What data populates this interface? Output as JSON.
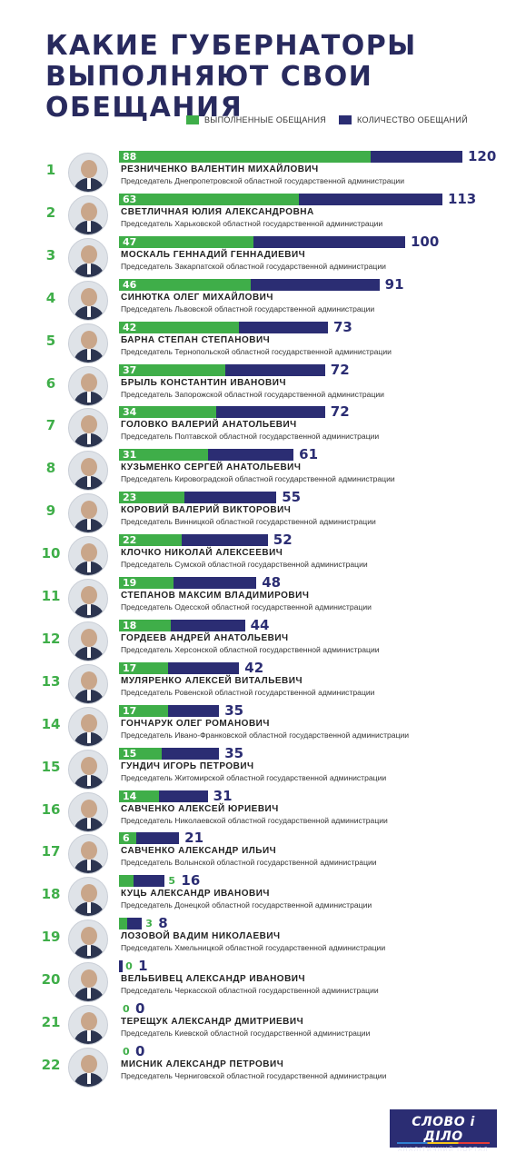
{
  "title": {
    "line1": "КАКИЕ ГУБЕРНАТОРЫ",
    "line2": "ВЫПОЛНЯЮТ СВОИ ОБЕЩАНИЯ"
  },
  "legend": {
    "done": "ВЫПОЛНЕННЫЕ ОБЕЩАНИЯ",
    "total": "КОЛИЧЕСТВО ОБЕЩАНИЙ"
  },
  "colors": {
    "done": "#3fae49",
    "total": "#2b2d73",
    "title": "#282a5e"
  },
  "logo": {
    "name": "СЛОВО і ДІЛО",
    "tagline": "АНАЛІТИЧНИЙ ПОРТАЛ"
  },
  "chart_data": {
    "type": "bar",
    "title": "КАКИЕ ГУБЕРНАТОРЫ ВЫПОЛНЯЮТ СВОИ ОБЕЩАНИЯ",
    "series": [
      {
        "name": "ВЫПОЛНЕННЫЕ ОБЕЩАНИЯ",
        "values": [
          88,
          63,
          47,
          46,
          42,
          37,
          34,
          31,
          23,
          22,
          19,
          18,
          17,
          17,
          15,
          14,
          6,
          5,
          3,
          0,
          0,
          0
        ]
      },
      {
        "name": "КОЛИЧЕСТВО ОБЕЩАНИЙ",
        "values": [
          120,
          113,
          100,
          91,
          73,
          72,
          72,
          61,
          55,
          52,
          48,
          44,
          42,
          35,
          35,
          31,
          21,
          16,
          8,
          1,
          0,
          0
        ]
      }
    ],
    "xlim": [
      0,
      120
    ],
    "rows": [
      {
        "rank": "1",
        "name": "РЕЗНИЧЕНКО ВАЛЕНТИН МИХАЙЛОВИЧ",
        "post": "Председатель Днепропетровской областной государственной администрации",
        "done": 88,
        "total": 120
      },
      {
        "rank": "2",
        "name": "СВЕТЛИЧНАЯ ЮЛИЯ АЛЕКСАНДРОВНА",
        "post": "Председатель Харьковской областной государственной администрации",
        "done": 63,
        "total": 113
      },
      {
        "rank": "3",
        "name": "МОСКАЛЬ ГЕННАДИЙ ГЕННАДИЕВИЧ",
        "post": "Председатель Закарпатской областной государственной администрации",
        "done": 47,
        "total": 100
      },
      {
        "rank": "4",
        "name": "СИНЮТКА ОЛЕГ МИХАЙЛОВИЧ",
        "post": "Председатель Львовской областной государственной администрации",
        "done": 46,
        "total": 91
      },
      {
        "rank": "5",
        "name": "БАРНА СТЕПАН СТЕПАНОВИЧ",
        "post": "Председатель Тернопольской областной государственной администрации",
        "done": 42,
        "total": 73
      },
      {
        "rank": "6",
        "name": "БРЫЛЬ КОНСТАНТИН ИВАНОВИЧ",
        "post": "Председатель Запорожской областной государственной администрации",
        "done": 37,
        "total": 72
      },
      {
        "rank": "7",
        "name": "ГОЛОВКО ВАЛЕРИЙ АНАТОЛЬЕВИЧ",
        "post": "Председатель Полтавской областной государственной администрации",
        "done": 34,
        "total": 72
      },
      {
        "rank": "8",
        "name": "КУЗЬМЕНКО СЕРГЕЙ АНАТОЛЬЕВИЧ",
        "post": "Председатель Кировоградской областной государственной администрации",
        "done": 31,
        "total": 61
      },
      {
        "rank": "9",
        "name": "КОРОВИЙ ВАЛЕРИЙ ВИКТОРОВИЧ",
        "post": "Председатель Винницкой областной государственной администрации",
        "done": 23,
        "total": 55
      },
      {
        "rank": "10",
        "name": "КЛОЧКО НИКОЛАЙ АЛЕКСЕЕВИЧ",
        "post": "Председатель Сумской областной государственной администрации",
        "done": 22,
        "total": 52
      },
      {
        "rank": "11",
        "name": "СТЕПАНОВ МАКСИМ ВЛАДИМИРОВИЧ",
        "post": "Председатель Одесской областной государственной администрации",
        "done": 19,
        "total": 48
      },
      {
        "rank": "12",
        "name": "ГОРДЕЕВ АНДРЕЙ АНАТОЛЬЕВИЧ",
        "post": "Председатель Херсонской областной государственной администрации",
        "done": 18,
        "total": 44
      },
      {
        "rank": "13",
        "name": "МУЛЯРЕНКО АЛЕКСЕЙ ВИТАЛЬЕВИЧ",
        "post": "Председатель Ровенской областной государственной администрации",
        "done": 17,
        "total": 42
      },
      {
        "rank": "14",
        "name": "ГОНЧАРУК ОЛЕГ РОМАНОВИЧ",
        "post": "Председатель Ивано-Франковской областной государственной администрации",
        "done": 17,
        "total": 35
      },
      {
        "rank": "15",
        "name": "ГУНДИЧ ИГОРЬ ПЕТРОВИЧ",
        "post": "Председатель Житомирской областной государственной администрации",
        "done": 15,
        "total": 35
      },
      {
        "rank": "16",
        "name": "САВЧЕНКО АЛЕКСЕЙ ЮРИЕВИЧ",
        "post": "Председатель Николаевской областной государственной администрации",
        "done": 14,
        "total": 31
      },
      {
        "rank": "17",
        "name": "САВЧЕНКО АЛЕКСАНДР ИЛЬИЧ",
        "post": "Председатель Волынской областной государственной администрации",
        "done": 6,
        "total": 21
      },
      {
        "rank": "18",
        "name": "КУЦЬ АЛЕКСАНДР ИВАНОВИЧ",
        "post": "Председатель Донецкой областной государственной администрации",
        "done": 5,
        "total": 16
      },
      {
        "rank": "19",
        "name": "ЛОЗОВОЙ ВАДИМ НИКОЛАЕВИЧ",
        "post": "Председатель Хмельницкой областной государственной администрации",
        "done": 3,
        "total": 8
      },
      {
        "rank": "20",
        "name": "ВЕЛЬБИВЕЦ АЛЕКСАНДР ИВАНОВИЧ",
        "post": "Председатель Черкасской областной государственной администрации",
        "done": 0,
        "total": 1
      },
      {
        "rank": "21",
        "name": "ТЕРЕЩУК АЛЕКСАНДР ДМИТРИЕВИЧ",
        "post": "Председатель Киевской областной государственной администрации",
        "done": 0,
        "total": 0
      },
      {
        "rank": "22",
        "name": "МИСНИК АЛЕКСАНДР ПЕТРОВИЧ",
        "post": "Председатель Черниговской областной государственной администрации",
        "done": 0,
        "total": 0
      }
    ]
  }
}
